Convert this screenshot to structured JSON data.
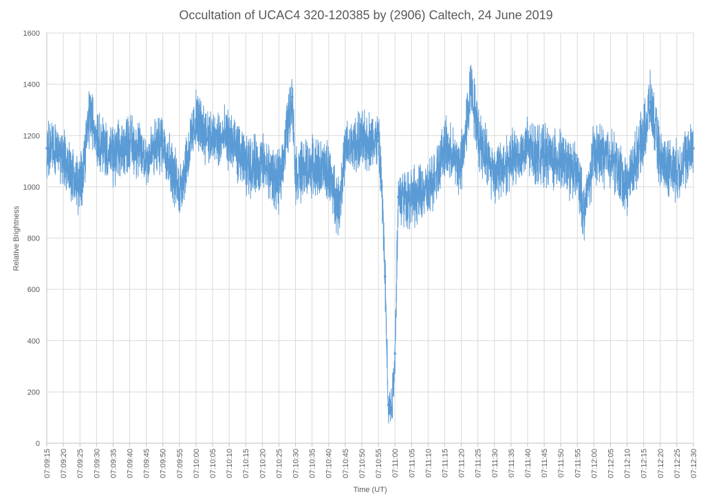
{
  "chart_data": {
    "type": "line",
    "title": "Occultation of UCAC4 320-120385 by (2906) Caltech, 24 June 2019",
    "xlabel": "Time (UT)",
    "ylabel": "Relative Brightness",
    "ylim": [
      0,
      1600
    ],
    "yticks": [
      "0",
      "200",
      "400",
      "600",
      "800",
      "1000",
      "1200",
      "1400",
      "1600"
    ],
    "xlim_seconds_label_range": [
      "07:09:15",
      "07:12:30"
    ],
    "xticks": [
      "07:09:15",
      "07:09:20",
      "07:09:25",
      "07:09:30",
      "07:09:35",
      "07:09:40",
      "07:09:45",
      "07:09:50",
      "07:09:55",
      "07:10:00",
      "07:10:05",
      "07:10:10",
      "07:10:15",
      "07:10:20",
      "07:10:25",
      "07:10:30",
      "07:10:35",
      "07:10:40",
      "07:10:45",
      "07:10:50",
      "07:10:55",
      "07:11:00",
      "07:11:05",
      "07:11:10",
      "07:11:15",
      "07:11:20",
      "07:11:25",
      "07:11:30",
      "07:11:35",
      "07:11:40",
      "07:11:45",
      "07:11:50",
      "07:11:55",
      "07:12:00",
      "07:12:05",
      "07:12:10",
      "07:12:15",
      "07:12:20",
      "07:12:25",
      "07:12:30"
    ],
    "grid": true,
    "series_color": "#5b9bd5",
    "series": [
      {
        "x": [
          "07:09:15",
          "07:09:20",
          "07:09:25",
          "07:09:28",
          "07:09:30",
          "07:09:35",
          "07:09:40",
          "07:09:45",
          "07:09:50",
          "07:09:55",
          "07:10:00",
          "07:10:05",
          "07:10:10",
          "07:10:15",
          "07:10:20",
          "07:10:25",
          "07:10:29",
          "07:10:30",
          "07:10:35",
          "07:10:40",
          "07:10:43",
          "07:10:45",
          "07:10:50",
          "07:10:55",
          "07:10:56",
          "07:10:57",
          "07:10:58",
          "07:10:59",
          "07:11:00",
          "07:11:01",
          "07:11:05",
          "07:11:10",
          "07:11:15",
          "07:11:20",
          "07:11:23",
          "07:11:25",
          "07:11:30",
          "07:11:35",
          "07:11:40",
          "07:11:45",
          "07:11:50",
          "07:11:55",
          "07:11:57",
          "07:12:00",
          "07:12:05",
          "07:12:10",
          "07:12:15",
          "07:12:17",
          "07:12:20",
          "07:12:25",
          "07:12:30"
        ],
        "values": [
          1150,
          1120,
          990,
          1290,
          1200,
          1110,
          1180,
          1110,
          1180,
          980,
          1260,
          1180,
          1190,
          1080,
          1090,
          1010,
          1350,
          1050,
          1080,
          1060,
          920,
          1140,
          1180,
          1180,
          1000,
          650,
          150,
          140,
          350,
          960,
          960,
          980,
          1150,
          1080,
          1400,
          1200,
          1050,
          1100,
          1150,
          1120,
          1100,
          1050,
          900,
          1130,
          1120,
          1000,
          1200,
          1330,
          1100,
          1060,
          1150
        ]
      }
    ]
  }
}
